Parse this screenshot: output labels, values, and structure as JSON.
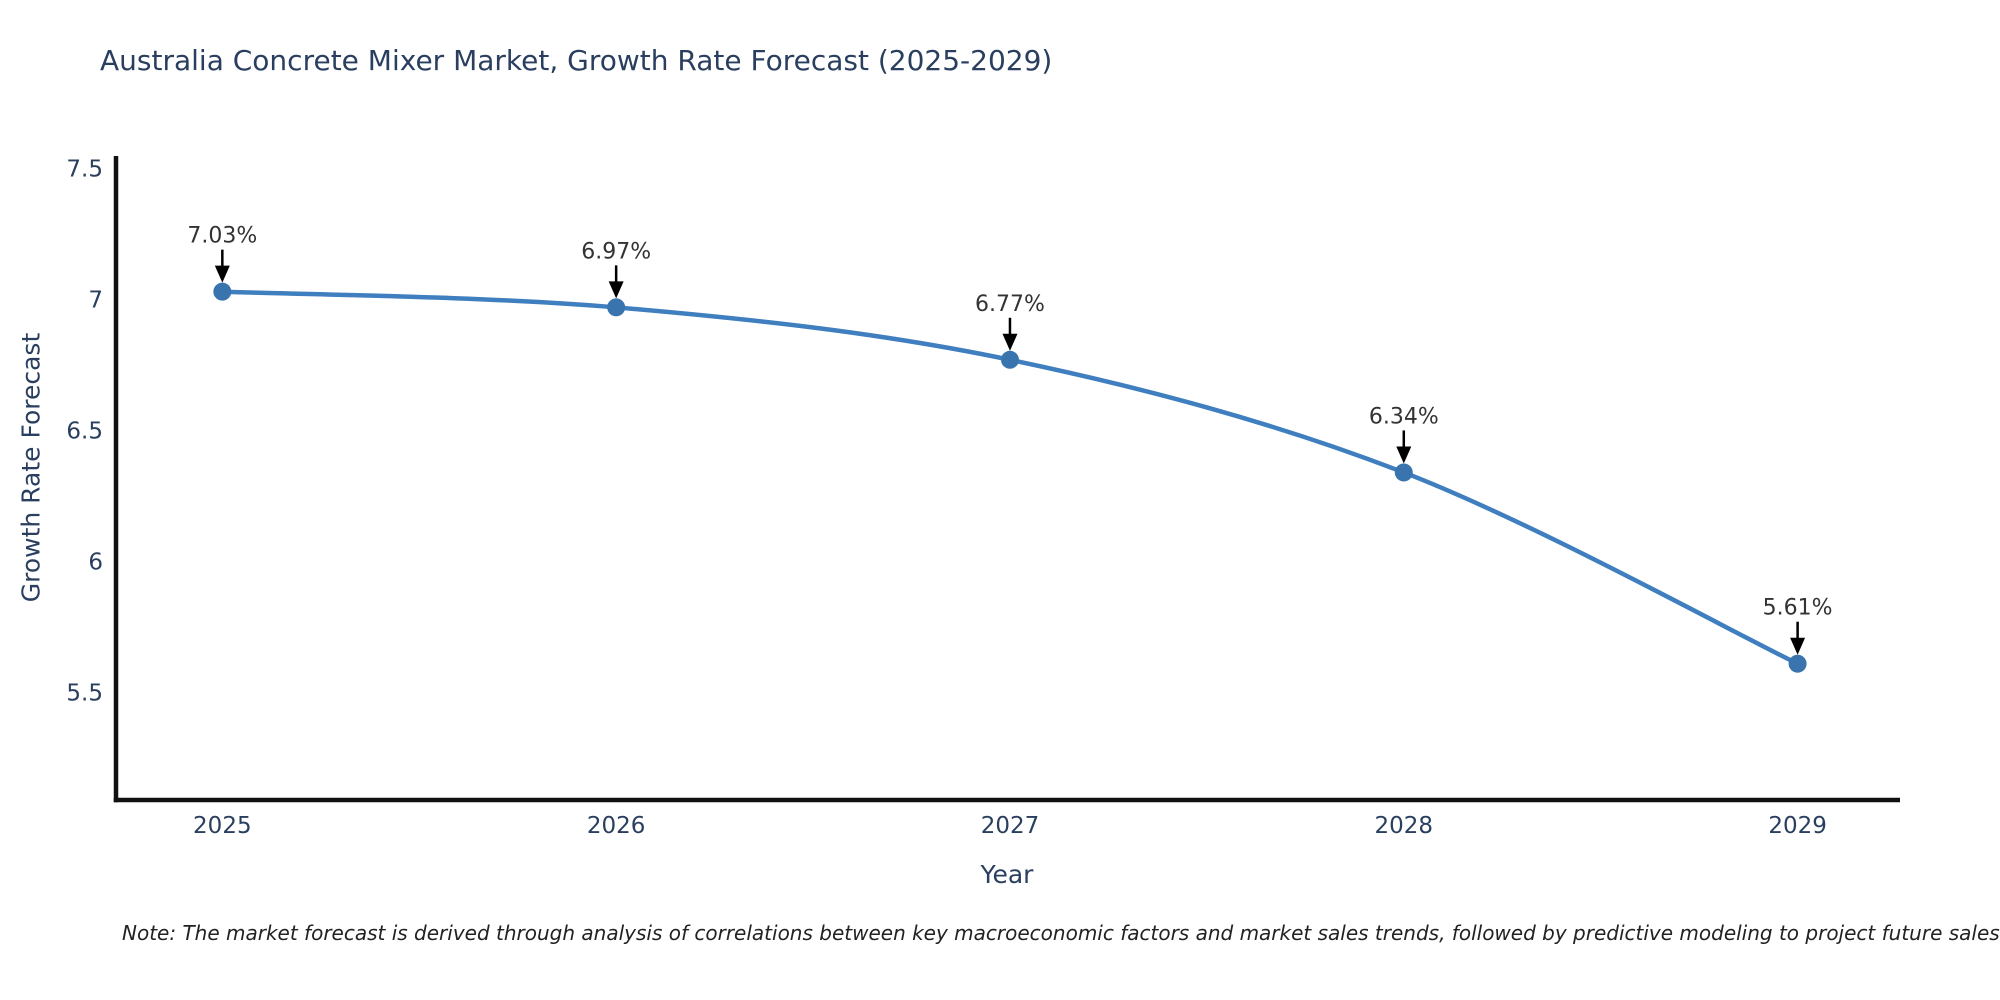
{
  "note": "Note: The market forecast is derived through analysis of correlations between key macroeconomic factors and market sales trends, followed by predictive modeling to project future sales",
  "colors": {
    "line": "#3f7fbf",
    "marker": "#3a74ae",
    "axis": "#111111",
    "tick_text": "#2a3f5f",
    "annotation_text": "#333333",
    "arrow": "#000000",
    "title_text": "#2a3f5f",
    "background": "#ffffff"
  },
  "chart_data": {
    "type": "line",
    "title": "Australia Concrete Mixer Market, Growth Rate Forecast (2025-2029)",
    "xlabel": "Year",
    "ylabel": "Growth Rate Forecast",
    "x": [
      2025,
      2026,
      2027,
      2028,
      2029
    ],
    "values": [
      7.03,
      6.97,
      6.77,
      6.34,
      5.61
    ],
    "point_labels": [
      "7.03%",
      "6.97%",
      "6.77%",
      "6.34%",
      "5.61%"
    ],
    "xtick_labels": [
      "2025",
      "2026",
      "2027",
      "2028",
      "2029"
    ],
    "ytick_values": [
      7.5,
      7,
      6.5,
      6,
      5.5
    ],
    "ytick_labels": [
      "7.5",
      "7",
      "6.5",
      "6",
      "5.5"
    ],
    "xlim": [
      2024.73,
      2029.26
    ],
    "ylim": [
      5.09,
      7.54
    ],
    "grid": false,
    "legend": "none",
    "line_shape": "spline",
    "annotations_have_arrows": true
  }
}
